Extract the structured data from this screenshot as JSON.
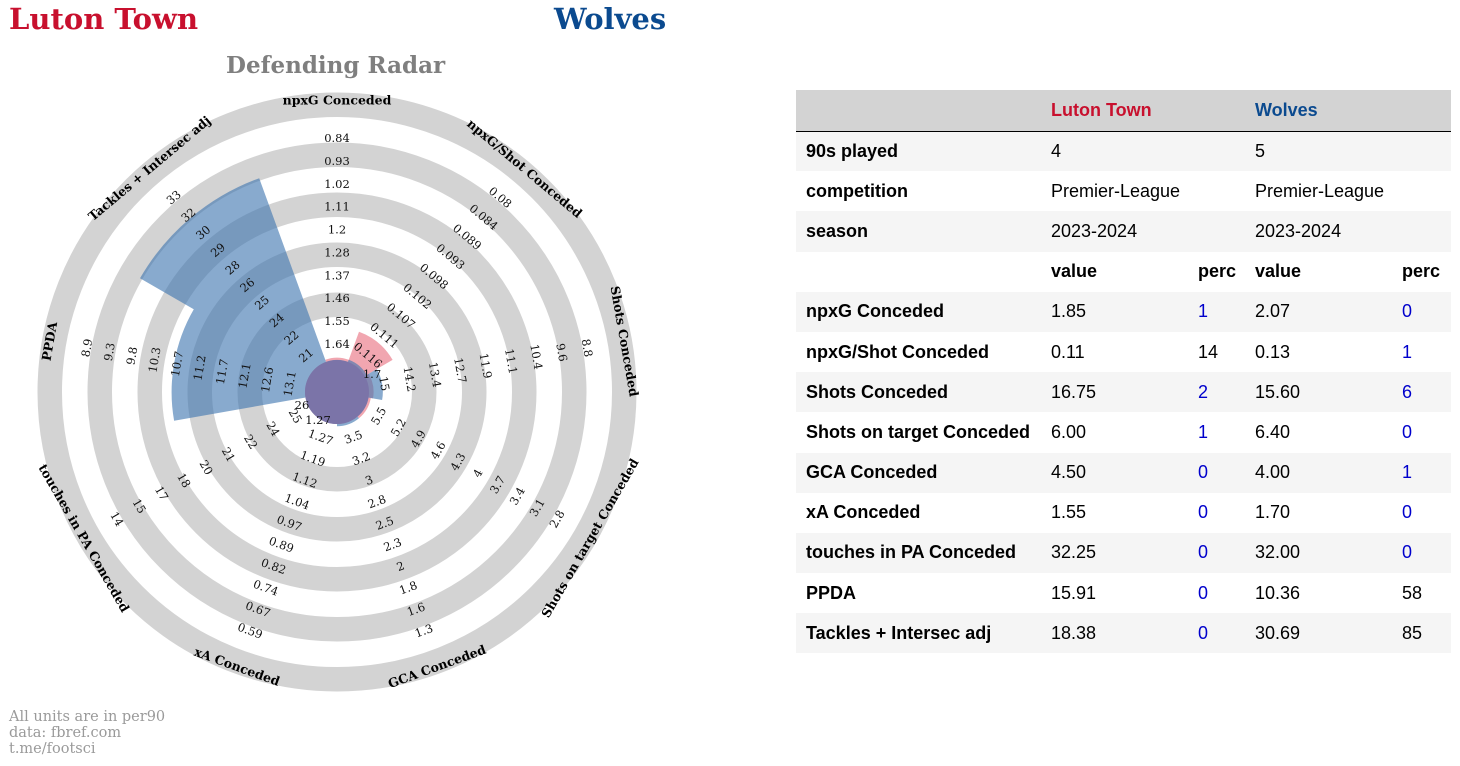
{
  "header": {
    "team_a": "Luton Town",
    "team_b": "Wolves",
    "team_a_color": "#c8102e",
    "team_b_color": "#0b4a8f"
  },
  "chart_data": {
    "type": "radar",
    "title": "Defending Radar",
    "rings": 5,
    "params": [
      "npxG Conceded",
      "npxG/Shot Conceded",
      "Shots Conceded",
      "Shots on target Conceded",
      "GCA Conceded",
      "xA Conceded",
      "touches in PA Conceded",
      "PPDA",
      "Tackles + Intersec adj"
    ],
    "tick_labels": [
      [
        "1.64",
        "1.55",
        "1.46",
        "1.37",
        "1.28",
        "1.2",
        "1.11",
        "1.02",
        "0.93",
        "0.84"
      ],
      [
        "0.116",
        "0.111",
        "0.107",
        "0.102",
        "0.098",
        "0.093",
        "0.089",
        "0.084",
        "0.08"
      ],
      [
        "15",
        "14.2",
        "13.4",
        "12.7",
        "11.9",
        "11.1",
        "10.4",
        "9.6",
        "8.8"
      ],
      [
        "5.5",
        "5.2",
        "4.9",
        "4.6",
        "4.3",
        "4",
        "3.7",
        "3.4",
        "3.1",
        "2.8"
      ],
      [
        "3.5",
        "3.2",
        "3",
        "2.8",
        "2.5",
        "2.3",
        "2",
        "1.8",
        "1.6",
        "1.3"
      ],
      [
        "1.27",
        "1.19",
        "1.12",
        "1.04",
        "0.97",
        "0.89",
        "0.82",
        "0.74",
        "0.67",
        "0.59"
      ],
      [
        "25",
        "24",
        "22",
        "21",
        "20",
        "18",
        "17",
        "15",
        "14"
      ],
      [
        "13.1",
        "12.6",
        "12.1",
        "11.7",
        "11.2",
        "10.7",
        "10.3",
        "9.8",
        "9.3",
        "8.9"
      ],
      [
        "21",
        "22",
        "24",
        "25",
        "26",
        "28",
        "29",
        "30",
        "32",
        "33"
      ]
    ],
    "center_tick_labels": [
      "1.7",
      "1.27",
      "26"
    ],
    "series": [
      {
        "name": "Luton Town",
        "color": "#e8707f",
        "percentiles": [
          1,
          14,
          2,
          1,
          0,
          0,
          0,
          0,
          0
        ]
      },
      {
        "name": "Wolves",
        "color": "#3f76b0",
        "percentiles": [
          0,
          1,
          6,
          0,
          1,
          0,
          0,
          58,
          85
        ]
      }
    ]
  },
  "table": {
    "columns": [
      "",
      "Luton Town",
      "",
      "Wolves",
      ""
    ],
    "meta_rows": [
      {
        "label": "90s played",
        "a": "4",
        "b": "5"
      },
      {
        "label": "competition",
        "a": "Premier-League",
        "b": "Premier-League"
      },
      {
        "label": "season",
        "a": "2023-2024",
        "b": "2023-2024"
      }
    ],
    "subheader": {
      "value": "value",
      "perc": "perc"
    },
    "rows": [
      {
        "label": "npxG Conceded",
        "a_value": "1.85",
        "a_perc": "1",
        "b_value": "2.07",
        "b_perc": "0"
      },
      {
        "label": "npxG/Shot Conceded",
        "a_value": "0.11",
        "a_perc": "14",
        "b_value": "0.13",
        "b_perc": "1"
      },
      {
        "label": "Shots Conceded",
        "a_value": "16.75",
        "a_perc": "2",
        "b_value": "15.60",
        "b_perc": "6"
      },
      {
        "label": "Shots on target Conceded",
        "a_value": "6.00",
        "a_perc": "1",
        "b_value": "6.40",
        "b_perc": "0"
      },
      {
        "label": "GCA Conceded",
        "a_value": "4.50",
        "a_perc": "0",
        "b_value": "4.00",
        "b_perc": "1"
      },
      {
        "label": "xA Conceded",
        "a_value": "1.55",
        "a_perc": "0",
        "b_value": "1.70",
        "b_perc": "0"
      },
      {
        "label": "touches in PA Conceded",
        "a_value": "32.25",
        "a_perc": "0",
        "b_value": "32.00",
        "b_perc": "0"
      },
      {
        "label": "PPDA",
        "a_value": "15.91",
        "a_perc": "0",
        "b_value": "10.36",
        "b_perc": "58"
      },
      {
        "label": "Tackles + Intersec adj",
        "a_value": "18.38",
        "a_perc": "0",
        "b_value": "30.69",
        "b_perc": "85"
      }
    ]
  },
  "footer": {
    "line1": "All units are in per90",
    "line2": "data: fbref.com",
    "line3": "t.me/footsci"
  }
}
